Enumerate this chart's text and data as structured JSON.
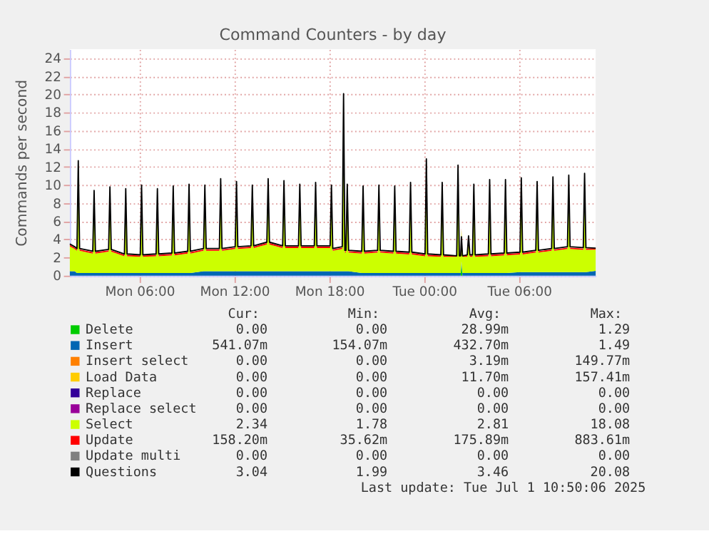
{
  "chart_data": {
    "type": "area",
    "stacked": true,
    "title": "Command Counters - by day",
    "ylabel": "Commands per second",
    "legend": "bottom",
    "grid": true,
    "xlim": [
      "2025-06-30T01:36",
      "2025-07-01T10:50"
    ],
    "xticks": [
      {
        "value": "2025-06-30T06:00",
        "label": "Mon 06:00"
      },
      {
        "value": "2025-06-30T12:00",
        "label": "Mon 12:00"
      },
      {
        "value": "2025-06-30T18:00",
        "label": "Mon 18:00"
      },
      {
        "value": "2025-07-01T00:00",
        "label": "Tue 00:00"
      },
      {
        "value": "2025-07-01T06:00",
        "label": "Tue 06:00"
      }
    ],
    "ylim": [
      0,
      25
    ],
    "yticks": [
      0,
      2,
      4,
      6,
      8,
      10,
      12,
      14,
      16,
      18,
      20,
      22,
      24
    ],
    "x": [
      "2025-06-30T01:36",
      "2025-06-30T01:54",
      "2025-06-30T02:03",
      "2025-06-30T02:08",
      "2025-06-30T02:13",
      "2025-06-30T03:03",
      "2025-06-30T03:08",
      "2025-06-30T03:13",
      "2025-06-30T04:03",
      "2025-06-30T04:08",
      "2025-06-30T04:13",
      "2025-06-30T05:03",
      "2025-06-30T05:08",
      "2025-06-30T05:13",
      "2025-06-30T06:03",
      "2025-06-30T06:08",
      "2025-06-30T06:13",
      "2025-06-30T07:03",
      "2025-06-30T07:08",
      "2025-06-30T07:13",
      "2025-06-30T08:03",
      "2025-06-30T08:08",
      "2025-06-30T08:13",
      "2025-06-30T09:03",
      "2025-06-30T09:08",
      "2025-06-30T09:13",
      "2025-06-30T10:03",
      "2025-06-30T10:08",
      "2025-06-30T10:13",
      "2025-06-30T11:03",
      "2025-06-30T11:08",
      "2025-06-30T11:13",
      "2025-06-30T12:03",
      "2025-06-30T12:08",
      "2025-06-30T12:13",
      "2025-06-30T13:03",
      "2025-06-30T13:08",
      "2025-06-30T13:13",
      "2025-06-30T14:03",
      "2025-06-30T14:08",
      "2025-06-30T14:13",
      "2025-06-30T15:03",
      "2025-06-30T15:08",
      "2025-06-30T15:13",
      "2025-06-30T16:03",
      "2025-06-30T16:08",
      "2025-06-30T16:13",
      "2025-06-30T17:03",
      "2025-06-30T17:08",
      "2025-06-30T17:13",
      "2025-06-30T18:03",
      "2025-06-30T18:08",
      "2025-06-30T18:13",
      "2025-06-30T18:49",
      "2025-06-30T18:54",
      "2025-06-30T18:59",
      "2025-06-30T19:03",
      "2025-06-30T19:08",
      "2025-06-30T19:13",
      "2025-06-30T20:03",
      "2025-06-30T20:08",
      "2025-06-30T20:13",
      "2025-06-30T21:03",
      "2025-06-30T21:08",
      "2025-06-30T21:13",
      "2025-06-30T22:03",
      "2025-06-30T22:08",
      "2025-06-30T22:13",
      "2025-06-30T23:03",
      "2025-06-30T23:08",
      "2025-06-30T23:13",
      "2025-07-01T00:03",
      "2025-07-01T00:08",
      "2025-07-01T00:13",
      "2025-07-01T01:03",
      "2025-07-01T01:08",
      "2025-07-01T01:13",
      "2025-07-01T02:03",
      "2025-07-01T02:08",
      "2025-07-01T02:13",
      "2025-07-01T02:18",
      "2025-07-01T02:21",
      "2025-07-01T02:25",
      "2025-07-01T02:43",
      "2025-07-01T02:48",
      "2025-07-01T02:53",
      "2025-07-01T03:03",
      "2025-07-01T03:08",
      "2025-07-01T03:13",
      "2025-07-01T04:03",
      "2025-07-01T04:08",
      "2025-07-01T04:13",
      "2025-07-01T05:03",
      "2025-07-01T05:08",
      "2025-07-01T05:13",
      "2025-07-01T06:03",
      "2025-07-01T06:08",
      "2025-07-01T06:13",
      "2025-07-01T07:03",
      "2025-07-01T07:08",
      "2025-07-01T07:13",
      "2025-07-01T08:03",
      "2025-07-01T08:08",
      "2025-07-01T08:13",
      "2025-07-01T09:03",
      "2025-07-01T09:08",
      "2025-07-01T09:13",
      "2025-07-01T10:03",
      "2025-07-01T10:08",
      "2025-07-01T10:13",
      "2025-07-01T10:50"
    ],
    "series": [
      {
        "name": "Delete",
        "color": "#00cc00",
        "values": [
          0,
          0,
          0,
          0,
          0,
          0,
          0,
          0,
          0,
          0,
          0,
          0,
          0,
          0,
          0,
          0,
          0,
          0,
          0,
          0,
          0,
          0,
          0,
          0,
          0,
          0,
          0,
          0,
          0,
          0,
          0,
          0,
          0,
          0,
          0,
          0,
          0,
          0,
          0,
          0,
          0,
          0,
          0,
          0,
          0,
          0,
          0,
          0,
          0,
          0,
          0,
          0,
          0,
          0,
          0,
          0,
          0,
          0,
          0,
          0,
          0,
          0,
          0,
          0,
          0,
          0,
          0,
          0,
          0,
          0,
          0,
          0,
          0,
          0,
          0,
          0,
          0,
          0,
          0,
          0,
          0,
          1.29,
          0,
          0,
          0,
          0,
          0,
          0,
          0,
          0,
          0,
          0,
          0,
          0,
          0,
          0,
          0,
          0,
          0,
          0,
          0,
          0,
          0,
          0,
          0,
          0,
          0,
          0,
          0,
          0,
          0
        ]
      },
      {
        "name": "Insert",
        "color": "#0066b3",
        "values": [
          0.5,
          0.5,
          0.3,
          0.3,
          0.3,
          0.3,
          0.3,
          0.3,
          0.3,
          0.3,
          0.3,
          0.3,
          0.3,
          0.3,
          0.3,
          0.3,
          0.3,
          0.3,
          0.3,
          0.3,
          0.3,
          0.3,
          0.3,
          0.3,
          0.3,
          0.3,
          0.5,
          0.5,
          0.5,
          0.5,
          0.5,
          0.5,
          0.5,
          0.5,
          0.5,
          0.5,
          0.5,
          0.5,
          0.5,
          0.5,
          0.5,
          0.5,
          0.5,
          0.5,
          0.5,
          0.5,
          0.5,
          0.5,
          0.5,
          0.5,
          0.5,
          0.5,
          0.5,
          0.5,
          0.5,
          0.5,
          0.5,
          0.5,
          0.5,
          0.3,
          0.3,
          0.3,
          0.3,
          0.3,
          0.3,
          0.3,
          0.3,
          0.3,
          0.3,
          0.3,
          0.3,
          0.3,
          0.3,
          0.3,
          0.3,
          0.3,
          0.3,
          0.3,
          0.3,
          0.3,
          0.3,
          0.3,
          0.3,
          0.3,
          0.3,
          0.3,
          0.3,
          0.3,
          0.3,
          0.3,
          0.3,
          0.3,
          0.3,
          0.3,
          0.3,
          0.4,
          0.4,
          0.4,
          0.4,
          0.4,
          0.4,
          0.4,
          0.4,
          0.4,
          0.4,
          0.4,
          0.4,
          0.4,
          0.4,
          0.4,
          0.54
        ]
      },
      {
        "name": "Insert select",
        "color": "#ff8000",
        "values": [
          null,
          null,
          null,
          null,
          null,
          null,
          null,
          null,
          null,
          null,
          null,
          null,
          null,
          null,
          null,
          null,
          null,
          null,
          null,
          null,
          null,
          null,
          null,
          null,
          null,
          null,
          null,
          null,
          null,
          null,
          null,
          null,
          null,
          null,
          null,
          null,
          null,
          null,
          null,
          null,
          null,
          null,
          null,
          null,
          null,
          null,
          null,
          null,
          null,
          null,
          null,
          null,
          null,
          null,
          null,
          null,
          null,
          null,
          null,
          null,
          null,
          null,
          null,
          null,
          null,
          null,
          null,
          null,
          null,
          null,
          null,
          null,
          null,
          null,
          null,
          null,
          null,
          null,
          null,
          null,
          null,
          null,
          null,
          null,
          null,
          null,
          null,
          null,
          null,
          null,
          null,
          null,
          null,
          null,
          null,
          null,
          null,
          null,
          null,
          null,
          null,
          null,
          null,
          null,
          null,
          null,
          null,
          null,
          null,
          null,
          null
        ]
      },
      {
        "name": "Load Data",
        "color": "#ffcc00",
        "values": [
          null,
          null,
          null,
          null,
          null,
          null,
          null,
          null,
          null,
          null,
          null,
          null,
          null,
          null,
          null,
          null,
          null,
          null,
          null,
          null,
          null,
          null,
          null,
          null,
          null,
          null,
          null,
          null,
          null,
          null,
          null,
          null,
          null,
          null,
          null,
          null,
          null,
          null,
          null,
          null,
          null,
          null,
          null,
          null,
          null,
          null,
          null,
          null,
          null,
          null,
          null,
          null,
          null,
          null,
          null,
          null,
          null,
          null,
          null,
          null,
          null,
          null,
          null,
          null,
          null,
          null,
          null,
          null,
          null,
          null,
          null,
          null,
          null,
          null,
          null,
          null,
          null,
          null,
          null,
          null,
          null,
          null,
          null,
          null,
          null,
          null,
          null,
          null,
          null,
          null,
          null,
          null,
          null,
          null,
          null,
          null,
          null,
          null,
          null,
          null,
          null,
          null,
          null,
          null,
          null,
          null,
          null,
          null,
          null,
          null,
          null
        ]
      },
      {
        "name": "Replace",
        "color": "#330099",
        "values": [
          null,
          null,
          null,
          null,
          null,
          null,
          null,
          null,
          null,
          null,
          null,
          null,
          null,
          null,
          null,
          null,
          null,
          null,
          null,
          null,
          null,
          null,
          null,
          null,
          null,
          null,
          null,
          null,
          null,
          null,
          null,
          null,
          null,
          null,
          null,
          null,
          null,
          null,
          null,
          null,
          null,
          null,
          null,
          null,
          null,
          null,
          null,
          null,
          null,
          null,
          null,
          null,
          null,
          null,
          null,
          null,
          null,
          null,
          null,
          null,
          null,
          null,
          null,
          null,
          null,
          null,
          null,
          null,
          null,
          null,
          null,
          null,
          null,
          null,
          null,
          null,
          null,
          null,
          null,
          null,
          null,
          null,
          null,
          null,
          null,
          null,
          null,
          null,
          null,
          null,
          null,
          null,
          null,
          null,
          null,
          null,
          null,
          null,
          null,
          null,
          null,
          null,
          null,
          null,
          null,
          null,
          null,
          null,
          null,
          null,
          null
        ]
      },
      {
        "name": "Replace select",
        "color": "#990099",
        "values": [
          null,
          null,
          null,
          null,
          null,
          null,
          null,
          null,
          null,
          null,
          null,
          null,
          null,
          null,
          null,
          null,
          null,
          null,
          null,
          null,
          null,
          null,
          null,
          null,
          null,
          null,
          null,
          null,
          null,
          null,
          null,
          null,
          null,
          null,
          null,
          null,
          null,
          null,
          null,
          null,
          null,
          null,
          null,
          null,
          null,
          null,
          null,
          null,
          null,
          null,
          null,
          null,
          null,
          null,
          null,
          null,
          null,
          null,
          null,
          null,
          null,
          null,
          null,
          null,
          null,
          null,
          null,
          null,
          null,
          null,
          null,
          null,
          null,
          null,
          null,
          null,
          null,
          null,
          null,
          null,
          null,
          null,
          null,
          null,
          null,
          null,
          null,
          null,
          null,
          null,
          null,
          null,
          null,
          null,
          null,
          null,
          null,
          null,
          null,
          null,
          null,
          null,
          null,
          null,
          null,
          null,
          null,
          null,
          null,
          null,
          null
        ]
      },
      {
        "name": "Select",
        "color": "#ccff00",
        "values": [
          2.75,
          2.45,
          2.45,
          11.5,
          2.45,
          2.15,
          8.2,
          2.15,
          2.35,
          8.6,
          2.35,
          1.85,
          8.4,
          1.85,
          1.78,
          8.8,
          1.78,
          1.85,
          8.4,
          1.85,
          1.95,
          8.7,
          1.95,
          2.15,
          8.9,
          2.15,
          2.25,
          8.8,
          2.25,
          2.25,
          9.5,
          2.25,
          2.45,
          9.2,
          2.45,
          2.55,
          8.8,
          2.55,
          2.95,
          9.5,
          2.95,
          2.55,
          9.3,
          2.55,
          2.55,
          8.9,
          2.55,
          2.55,
          9.1,
          2.55,
          2.55,
          8.8,
          2.25,
          2.45,
          18.08,
          2.05,
          2.05,
          8.9,
          2.05,
          2.15,
          8.7,
          2.15,
          2.25,
          8.8,
          2.25,
          2.15,
          8.7,
          2.15,
          2.05,
          9.1,
          2.05,
          1.85,
          11.7,
          1.85,
          1.78,
          9.1,
          1.78,
          1.78,
          11.0,
          1.78,
          1.78,
          3.5,
          1.78,
          1.78,
          3.6,
          1.78,
          1.78,
          8.9,
          1.78,
          1.85,
          9.4,
          1.85,
          1.95,
          9.4,
          1.95,
          1.95,
          9.6,
          1.95,
          2.15,
          9.2,
          2.15,
          2.35,
          9.7,
          2.35,
          2.55,
          9.9,
          2.55,
          2.45,
          10.1,
          2.45,
          2.34
        ]
      },
      {
        "name": "Update",
        "color": "#ff0000",
        "values": [
          0.15,
          0.15,
          0.15,
          0.15,
          0.15,
          0.15,
          0.15,
          0.15,
          0.15,
          0.15,
          0.15,
          0.15,
          0.15,
          0.15,
          0.15,
          0.15,
          0.15,
          0.15,
          0.15,
          0.15,
          0.15,
          0.15,
          0.15,
          0.15,
          0.15,
          0.15,
          0.15,
          0.15,
          0.15,
          0.15,
          0.15,
          0.15,
          0.15,
          0.15,
          0.15,
          0.15,
          0.15,
          0.15,
          0.15,
          0.88,
          0.15,
          0.15,
          0.15,
          0.15,
          0.15,
          0.15,
          0.15,
          0.15,
          0.15,
          0.15,
          0.15,
          0.15,
          0.15,
          0.15,
          0.15,
          0.15,
          0.15,
          0.15,
          0.15,
          0.15,
          0.15,
          0.15,
          0.15,
          0.15,
          0.15,
          0.15,
          0.15,
          0.15,
          0.15,
          0.15,
          0.15,
          0.15,
          0.15,
          0.15,
          0.15,
          0.15,
          0.15,
          0.15,
          0.15,
          0.15,
          0.15,
          0.15,
          0.15,
          0.15,
          0.15,
          0.15,
          0.15,
          0.15,
          0.15,
          0.15,
          0.15,
          0.15,
          0.15,
          0.15,
          0.15,
          0.15,
          0.15,
          0.15,
          0.15,
          0.15,
          0.15,
          0.15,
          0.15,
          0.15,
          0.15,
          0.15,
          0.15,
          0.15,
          0.15,
          0.15,
          0.16
        ]
      },
      {
        "name": "Update multi",
        "color": "#808080",
        "values": [
          null,
          null,
          null,
          null,
          null,
          null,
          null,
          null,
          null,
          null,
          null,
          null,
          null,
          null,
          null,
          null,
          null,
          null,
          null,
          null,
          null,
          null,
          null,
          null,
          null,
          null,
          null,
          null,
          null,
          null,
          null,
          null,
          null,
          null,
          null,
          null,
          null,
          null,
          null,
          null,
          null,
          null,
          null,
          null,
          null,
          null,
          null,
          null,
          null,
          null,
          null,
          null,
          null,
          null,
          null,
          null,
          null,
          null,
          null,
          null,
          null,
          null,
          null,
          null,
          null,
          null,
          null,
          null,
          null,
          null,
          null,
          null,
          null,
          null,
          null,
          null,
          null,
          null,
          null,
          null,
          null,
          null,
          null,
          null,
          null,
          null,
          null,
          null,
          null,
          null,
          null,
          null,
          null,
          null,
          null,
          null,
          null,
          null,
          null,
          null,
          null,
          null,
          null,
          null,
          null,
          null,
          null,
          null,
          null,
          null,
          null
        ]
      },
      {
        "name": "Questions",
        "color": "#000000",
        "type": "line",
        "values": [
          3.5,
          3.2,
          3.0,
          12.7,
          3.0,
          2.7,
          9.4,
          2.7,
          2.9,
          9.8,
          2.9,
          2.4,
          9.6,
          2.4,
          2.3,
          10.0,
          2.3,
          2.4,
          9.6,
          2.4,
          2.5,
          9.9,
          2.5,
          2.7,
          10.1,
          2.7,
          3.0,
          10.0,
          3.0,
          3.0,
          10.7,
          3.0,
          3.2,
          10.4,
          3.2,
          3.3,
          10.0,
          3.3,
          3.7,
          10.7,
          3.7,
          3.3,
          10.5,
          3.3,
          3.3,
          10.1,
          3.3,
          3.3,
          10.3,
          3.3,
          3.3,
          10.0,
          3.0,
          3.2,
          20.08,
          2.8,
          2.8,
          10.1,
          2.8,
          2.7,
          9.9,
          2.7,
          2.8,
          10.0,
          2.8,
          2.7,
          9.9,
          2.7,
          2.6,
          10.3,
          2.6,
          2.4,
          12.9,
          2.4,
          2.3,
          10.3,
          2.3,
          2.2,
          12.2,
          2.2,
          2.2,
          4.3,
          2.2,
          2.3,
          4.4,
          2.3,
          2.3,
          10.1,
          2.3,
          2.4,
          10.6,
          2.4,
          2.5,
          10.6,
          2.5,
          2.6,
          10.8,
          2.6,
          2.8,
          10.4,
          2.8,
          3.0,
          10.9,
          3.0,
          3.2,
          11.1,
          3.2,
          3.1,
          11.3,
          3.1,
          3.04
        ]
      }
    ],
    "annotations": [
      "Cur:",
      "Min:",
      "Avg:",
      "Max:",
      "0.00",
      "0.00",
      "28.99m",
      "1.29",
      "541.07m",
      "154.07m",
      "432.70m",
      "1.49",
      "0.00",
      "0.00",
      "3.19m",
      "149.77m",
      "0.00",
      "0.00",
      "11.70m",
      "157.41m",
      "0.00",
      "0.00",
      "0.00",
      "0.00",
      "0.00",
      "0.00",
      "0.00",
      "0.00",
      "2.34",
      "1.78",
      "2.81",
      "18.08",
      "158.20m",
      "35.62m",
      "175.89m",
      "883.61m",
      "0.00",
      "0.00",
      "0.00",
      "0.00",
      "3.04",
      "1.99",
      "3.46",
      "20.08",
      "Last update: Tue Jul  1 10:50:06 2025"
    ]
  }
}
